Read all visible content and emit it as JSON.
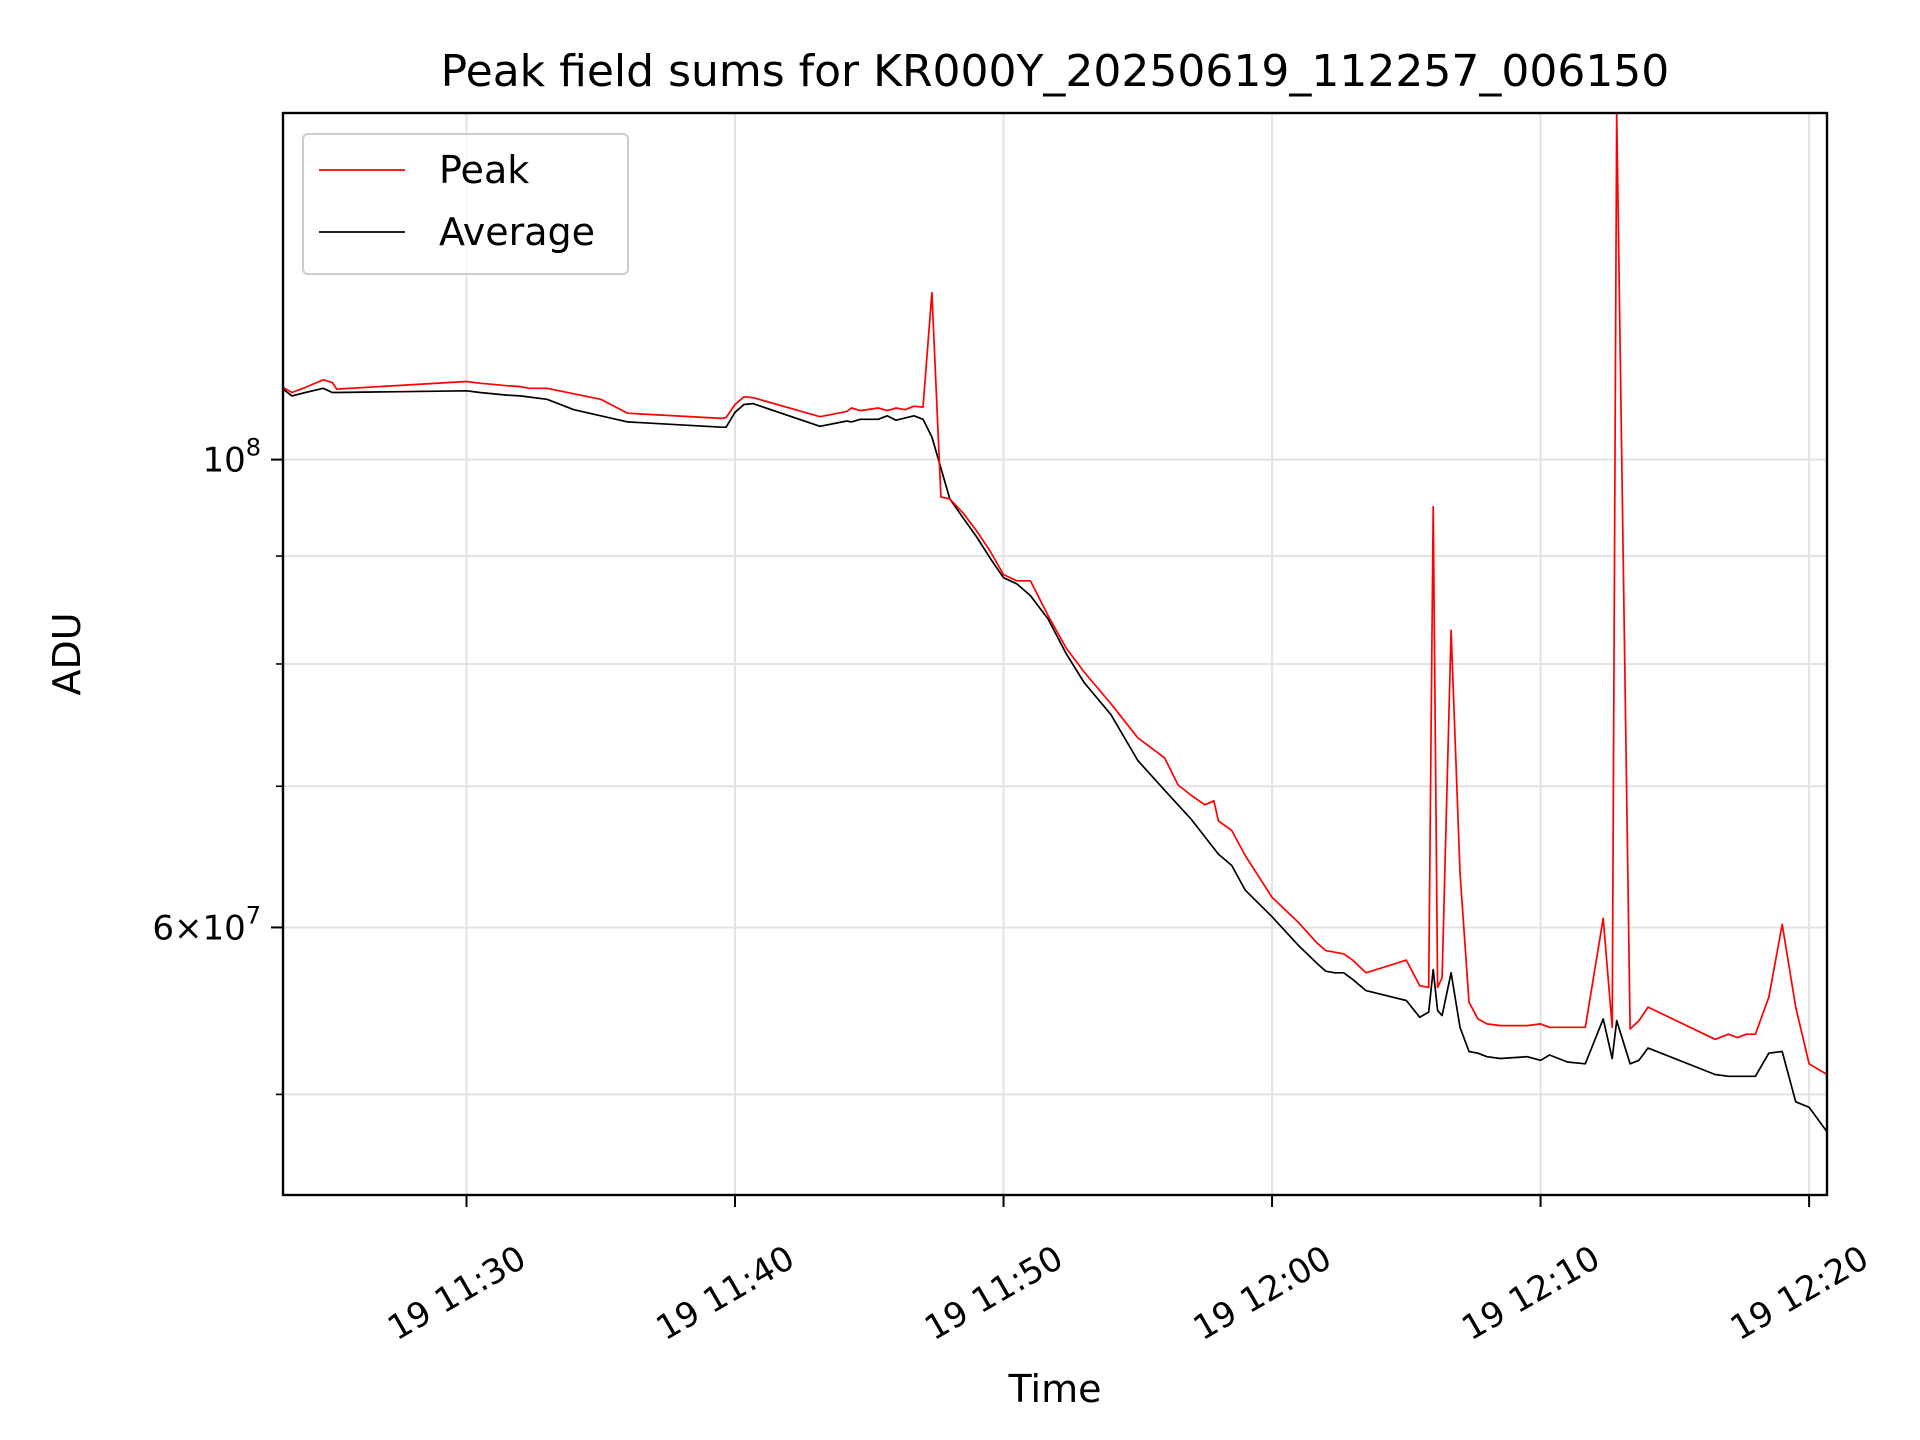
{
  "chart_data": {
    "type": "line",
    "title": "Peak field sums for KR000Y_20250619_112257_006150",
    "xlabel": "Time",
    "ylabel": "ADU",
    "x_axis": {
      "kind": "time",
      "range": [
        "11:23:10",
        "12:20:40"
      ],
      "ticks": [
        {
          "value": "11:30",
          "label": "19 11:30"
        },
        {
          "value": "11:40",
          "label": "19 11:40"
        },
        {
          "value": "11:50",
          "label": "19 11:50"
        },
        {
          "value": "12:00",
          "label": "19 12:00"
        },
        {
          "value": "12:10",
          "label": "19 12:10"
        },
        {
          "value": "12:20",
          "label": "19 12:20"
        }
      ]
    },
    "y_axis": {
      "scale": "log",
      "range": [
        44800000,
        146000000
      ],
      "major_ticks": [
        {
          "value": 100000000,
          "base": "10",
          "exp": "8"
        },
        {
          "value": 60000000,
          "mantissa": "6",
          "base": "10",
          "exp": "7"
        }
      ],
      "minor_ticks": [
        50000000,
        70000000,
        80000000,
        90000000
      ]
    },
    "grid": true,
    "legend": {
      "position": "top-left"
    },
    "series": [
      {
        "name": "Peak",
        "color": "#ff0000",
        "points": [
          [
            "11:23:10",
            108200000
          ],
          [
            "11:23:30",
            107600000
          ],
          [
            "11:24:00",
            108200000
          ],
          [
            "11:24:40",
            109100000
          ],
          [
            "11:25:00",
            108800000
          ],
          [
            "11:25:10",
            108000000
          ],
          [
            "11:30:00",
            108900000
          ],
          [
            "11:30:30",
            108700000
          ],
          [
            "11:31:30",
            108400000
          ],
          [
            "11:32:00",
            108300000
          ],
          [
            "11:32:20",
            108100000
          ],
          [
            "11:33:00",
            108100000
          ],
          [
            "11:35:00",
            106800000
          ],
          [
            "11:36:00",
            105200000
          ],
          [
            "11:39:30",
            104600000
          ],
          [
            "11:39:40",
            104700000
          ],
          [
            "11:40:00",
            106200000
          ],
          [
            "11:40:20",
            107100000
          ],
          [
            "11:40:40",
            107000000
          ],
          [
            "11:43:10",
            104800000
          ],
          [
            "11:44:10",
            105400000
          ],
          [
            "11:44:20",
            105800000
          ],
          [
            "11:44:40",
            105500000
          ],
          [
            "11:45:20",
            105800000
          ],
          [
            "11:45:40",
            105500000
          ],
          [
            "11:46:00",
            105800000
          ],
          [
            "11:46:20",
            105600000
          ],
          [
            "11:46:40",
            106000000
          ],
          [
            "11:47:00",
            105900000
          ],
          [
            "11:47:20",
            120000000
          ],
          [
            "11:47:40",
            96000000
          ],
          [
            "11:48:00",
            95800000
          ],
          [
            "11:48:30",
            94300000
          ],
          [
            "11:49:00",
            92500000
          ],
          [
            "11:49:30",
            90500000
          ],
          [
            "11:50:00",
            88200000
          ],
          [
            "11:50:30",
            87600000
          ],
          [
            "11:51:00",
            87600000
          ],
          [
            "11:51:40",
            84300000
          ],
          [
            "11:52:20",
            81400000
          ],
          [
            "11:53:00",
            79300000
          ],
          [
            "11:54:00",
            76600000
          ],
          [
            "11:55:00",
            73800000
          ],
          [
            "11:56:00",
            72200000
          ],
          [
            "11:56:30",
            70100000
          ],
          [
            "11:57:00",
            69300000
          ],
          [
            "11:57:30",
            68600000
          ],
          [
            "11:57:50",
            68900000
          ],
          [
            "11:58:00",
            67400000
          ],
          [
            "11:58:30",
            66700000
          ],
          [
            "11:59:00",
            64900000
          ],
          [
            "12:00:00",
            62000000
          ],
          [
            "12:01:00",
            60300000
          ],
          [
            "12:01:40",
            59000000
          ],
          [
            "12:02:00",
            58500000
          ],
          [
            "12:02:40",
            58300000
          ],
          [
            "12:03:00",
            57900000
          ],
          [
            "12:03:30",
            57100000
          ],
          [
            "12:05:00",
            57900000
          ],
          [
            "12:05:30",
            56300000
          ],
          [
            "12:05:50",
            56200000
          ],
          [
            "12:06:00",
            95000000
          ],
          [
            "12:06:10",
            56200000
          ],
          [
            "12:06:20",
            56800000
          ],
          [
            "12:06:40",
            83000000
          ],
          [
            "12:07:00",
            63700000
          ],
          [
            "12:07:20",
            55300000
          ],
          [
            "12:07:40",
            54300000
          ],
          [
            "12:08:00",
            54000000
          ],
          [
            "12:08:30",
            53900000
          ],
          [
            "12:09:30",
            53900000
          ],
          [
            "12:10:00",
            54000000
          ],
          [
            "12:10:20",
            53800000
          ],
          [
            "12:11:00",
            53800000
          ],
          [
            "12:11:40",
            53800000
          ],
          [
            "12:12:20",
            60600000
          ],
          [
            "12:12:40",
            53800000
          ],
          [
            "12:12:50",
            146000000
          ],
          [
            "12:13:20",
            53700000
          ],
          [
            "12:13:40",
            54200000
          ],
          [
            "12:14:00",
            55000000
          ],
          [
            "12:16:30",
            53100000
          ],
          [
            "12:17:00",
            53400000
          ],
          [
            "12:17:20",
            53200000
          ],
          [
            "12:17:40",
            53400000
          ],
          [
            "12:18:00",
            53400000
          ],
          [
            "12:18:30",
            55600000
          ],
          [
            "12:19:00",
            60200000
          ],
          [
            "12:19:30",
            55000000
          ],
          [
            "12:20:00",
            51700000
          ],
          [
            "12:20:40",
            51100000
          ]
        ]
      },
      {
        "name": "Average",
        "color": "#000000",
        "points": [
          [
            "11:23:10",
            108000000
          ],
          [
            "11:23:30",
            107200000
          ],
          [
            "11:24:00",
            107600000
          ],
          [
            "11:24:40",
            108100000
          ],
          [
            "11:25:00",
            107600000
          ],
          [
            "11:25:10",
            107600000
          ],
          [
            "11:30:00",
            107800000
          ],
          [
            "11:30:30",
            107600000
          ],
          [
            "11:31:30",
            107300000
          ],
          [
            "11:32:00",
            107200000
          ],
          [
            "11:33:00",
            106800000
          ],
          [
            "11:34:00",
            105600000
          ],
          [
            "11:36:00",
            104200000
          ],
          [
            "11:39:30",
            103600000
          ],
          [
            "11:39:40",
            103600000
          ],
          [
            "11:40:00",
            105300000
          ],
          [
            "11:40:20",
            106200000
          ],
          [
            "11:40:40",
            106300000
          ],
          [
            "11:43:10",
            103700000
          ],
          [
            "11:44:10",
            104300000
          ],
          [
            "11:44:20",
            104200000
          ],
          [
            "11:44:40",
            104500000
          ],
          [
            "11:45:20",
            104500000
          ],
          [
            "11:45:40",
            104900000
          ],
          [
            "11:46:00",
            104400000
          ],
          [
            "11:46:40",
            104900000
          ],
          [
            "11:47:00",
            104500000
          ],
          [
            "11:47:20",
            102500000
          ],
          [
            "11:48:00",
            95800000
          ],
          [
            "11:48:30",
            93800000
          ],
          [
            "11:49:00",
            91900000
          ],
          [
            "11:49:30",
            89800000
          ],
          [
            "11:50:00",
            87900000
          ],
          [
            "11:50:30",
            87300000
          ],
          [
            "11:51:00",
            86200000
          ],
          [
            "11:51:40",
            84000000
          ],
          [
            "11:52:20",
            80900000
          ],
          [
            "11:53:00",
            78400000
          ],
          [
            "11:54:00",
            75700000
          ],
          [
            "11:55:00",
            72000000
          ],
          [
            "11:56:00",
            69700000
          ],
          [
            "11:57:00",
            67500000
          ],
          [
            "11:58:00",
            65000000
          ],
          [
            "11:58:30",
            64200000
          ],
          [
            "11:59:00",
            62500000
          ],
          [
            "12:00:00",
            60700000
          ],
          [
            "12:01:00",
            58800000
          ],
          [
            "12:01:40",
            57700000
          ],
          [
            "12:02:00",
            57200000
          ],
          [
            "12:02:20",
            57100000
          ],
          [
            "12:02:40",
            57100000
          ],
          [
            "12:03:00",
            56700000
          ],
          [
            "12:03:30",
            56000000
          ],
          [
            "12:05:00",
            55400000
          ],
          [
            "12:05:30",
            54400000
          ],
          [
            "12:05:50",
            54700000
          ],
          [
            "12:06:00",
            57300000
          ],
          [
            "12:06:10",
            54800000
          ],
          [
            "12:06:20",
            54500000
          ],
          [
            "12:06:40",
            57100000
          ],
          [
            "12:07:00",
            53800000
          ],
          [
            "12:07:20",
            52400000
          ],
          [
            "12:07:40",
            52300000
          ],
          [
            "12:08:00",
            52100000
          ],
          [
            "12:08:30",
            52000000
          ],
          [
            "12:09:30",
            52100000
          ],
          [
            "12:10:00",
            51900000
          ],
          [
            "12:10:20",
            52200000
          ],
          [
            "12:11:00",
            51800000
          ],
          [
            "12:11:40",
            51700000
          ],
          [
            "12:12:20",
            54300000
          ],
          [
            "12:12:40",
            52000000
          ],
          [
            "12:12:50",
            54200000
          ],
          [
            "12:13:20",
            51700000
          ],
          [
            "12:13:40",
            51900000
          ],
          [
            "12:14:00",
            52600000
          ],
          [
            "12:16:30",
            51100000
          ],
          [
            "12:17:00",
            51000000
          ],
          [
            "12:17:20",
            51000000
          ],
          [
            "12:18:00",
            51000000
          ],
          [
            "12:18:30",
            52300000
          ],
          [
            "12:19:00",
            52400000
          ],
          [
            "12:19:30",
            49600000
          ],
          [
            "12:20:00",
            49300000
          ],
          [
            "12:20:40",
            48000000
          ]
        ]
      }
    ]
  }
}
